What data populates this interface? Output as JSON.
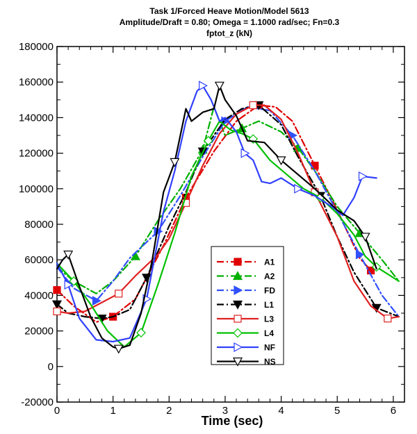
{
  "chart_data": {
    "type": "line",
    "title_lines": [
      "Task 1/Forced Heave Motion/Model 5613",
      "Amplitude/Draft =  0.80; Omega =  1.1000 rad/sec; Fn=0.3",
      "fptot_z (kN)"
    ],
    "xlabel": "Time (sec)",
    "ylabel": "",
    "xlim": [
      0,
      6.2
    ],
    "ylim": [
      -20000,
      180000
    ],
    "x_ticks": [
      0,
      1,
      2,
      3,
      4,
      5,
      6
    ],
    "x_tick_labels": [
      "0",
      "1",
      "2",
      "3",
      "4",
      "5",
      "6"
    ],
    "y_ticks": [
      -20000,
      0,
      20000,
      40000,
      60000,
      80000,
      100000,
      120000,
      140000,
      160000,
      180000
    ],
    "y_tick_labels": [
      "-20000",
      "0",
      "20000",
      "40000",
      "60000",
      "80000",
      "100000",
      "120000",
      "140000",
      "160000",
      "180000"
    ],
    "legend_position": "lower-center",
    "grid": false,
    "series": [
      {
        "name": "A1",
        "color": "#e00000",
        "dash": "dashdot",
        "marker": "square-filled",
        "x": [
          0,
          0.3,
          0.7,
          1.0,
          1.4,
          1.9,
          2.3,
          2.8,
          3.2,
          3.6,
          3.9,
          4.2,
          4.6,
          5.0,
          5.4,
          5.6
        ],
        "y": [
          43000,
          34000,
          25000,
          28000,
          38000,
          68000,
          95000,
          121000,
          138000,
          147000,
          146000,
          138000,
          113000,
          88000,
          61000,
          54000
        ]
      },
      {
        "name": "A2",
        "color": "#00b000",
        "dash": "dashdot",
        "marker": "triangle-up-filled",
        "x": [
          0,
          0.3,
          0.7,
          1.0,
          1.4,
          1.8,
          2.2,
          2.6,
          2.8,
          3.0,
          3.3,
          3.6,
          4.0,
          4.3,
          4.6,
          5.0,
          5.4,
          5.8,
          6.1
        ],
        "y": [
          56000,
          48000,
          41000,
          48000,
          62000,
          82000,
          100000,
          122000,
          146000,
          130000,
          134000,
          138000,
          132000,
          123000,
          110000,
          90000,
          75000,
          60000,
          48000
        ]
      },
      {
        "name": "FD",
        "color": "#3050ff",
        "dash": "dashdot",
        "marker": "triangle-right-filled",
        "x": [
          0,
          0.3,
          0.7,
          1.0,
          1.3,
          1.8,
          2.2,
          2.6,
          3.0,
          3.4,
          3.8,
          4.2,
          4.6,
          5.0,
          5.4,
          5.8,
          6.1
        ],
        "y": [
          56000,
          44000,
          37000,
          48000,
          61000,
          76000,
          96000,
          118000,
          138000,
          146000,
          144000,
          130000,
          110000,
          87000,
          63000,
          40000,
          28000
        ]
      },
      {
        "name": "L1",
        "color": "#000000",
        "dash": "dashdot",
        "marker": "triangle-down-filled",
        "x": [
          0,
          0.2,
          0.5,
          0.8,
          1.0,
          1.3,
          1.6,
          2.0,
          2.3,
          2.6,
          3.0,
          3.3,
          3.6,
          4.0,
          4.3,
          4.7,
          5.0,
          5.3,
          5.7,
          6.1
        ],
        "y": [
          35000,
          30000,
          28000,
          27000,
          28000,
          32000,
          50000,
          79000,
          98000,
          121000,
          139000,
          145000,
          147000,
          136000,
          118000,
          96000,
          73000,
          53000,
          33000,
          28000
        ]
      },
      {
        "name": "L3",
        "color": "#e02020",
        "dash": "solid",
        "marker": "square-open",
        "x": [
          0,
          0.2,
          0.5,
          0.8,
          1.1,
          1.4,
          1.8,
          2.0,
          2.3,
          2.6,
          2.9,
          3.2,
          3.5,
          3.7,
          4.0,
          4.3,
          4.6,
          5.0,
          5.3,
          5.6,
          5.9,
          6.1
        ],
        "y": [
          31000,
          30000,
          31000,
          36000,
          41000,
          51000,
          63000,
          72000,
          92000,
          113000,
          131000,
          142000,
          147000,
          147000,
          139000,
          120000,
          98000,
          73000,
          48000,
          34000,
          27000,
          28000
        ]
      },
      {
        "name": "L4",
        "color": "#00c000",
        "dash": "solid",
        "marker": "diamond-open",
        "x": [
          0,
          0.3,
          0.6,
          0.9,
          1.2,
          1.5,
          1.8,
          2.1,
          2.4,
          2.7,
          2.9,
          3.1,
          3.3,
          3.5,
          3.8,
          4.1,
          4.4,
          4.7,
          5.0,
          5.3,
          5.5,
          5.7,
          5.9,
          6.1
        ],
        "y": [
          58000,
          48000,
          35000,
          20000,
          11000,
          19000,
          46000,
          75000,
          107000,
          127000,
          138000,
          133000,
          131000,
          128000,
          116000,
          108000,
          100000,
          95000,
          86000,
          74000,
          62000,
          56000,
          52000,
          48000
        ]
      },
      {
        "name": "NF",
        "color": "#3040ff",
        "dash": "solid",
        "marker": "triangle-right-open",
        "x": [
          0,
          0.2,
          0.4,
          0.7,
          1.0,
          1.3,
          1.6,
          1.9,
          2.1,
          2.3,
          2.5,
          2.6,
          2.75,
          2.9,
          3.0,
          3.2,
          3.35,
          3.5,
          3.65,
          3.8,
          4.0,
          4.3,
          4.6,
          4.9,
          5.1,
          5.3,
          5.45,
          5.7
        ],
        "y": [
          58000,
          46000,
          27000,
          15000,
          14000,
          16000,
          38000,
          87000,
          110000,
          138000,
          155000,
          158000,
          150000,
          138000,
          140000,
          132000,
          120000,
          116000,
          104000,
          103000,
          106000,
          100000,
          96000,
          90000,
          85000,
          95000,
          107000,
          106000
        ]
      },
      {
        "name": "NS",
        "color": "#000000",
        "dash": "solid",
        "marker": "triangle-down-open",
        "x": [
          0,
          0.1,
          0.2,
          0.4,
          0.6,
          0.8,
          1.0,
          1.1,
          1.3,
          1.5,
          1.7,
          1.9,
          2.1,
          2.3,
          2.4,
          2.6,
          2.8,
          2.9,
          3.0,
          3.2,
          3.4,
          3.7,
          4.0,
          4.3,
          4.6,
          5.0,
          5.3,
          5.5,
          5.7
        ],
        "y": [
          55000,
          60000,
          63000,
          45000,
          28000,
          16000,
          11000,
          10000,
          12000,
          30000,
          60000,
          98000,
          115000,
          145000,
          138000,
          143000,
          145000,
          158000,
          150000,
          141000,
          127000,
          126000,
          116000,
          108000,
          100000,
          88000,
          82000,
          73000,
          55000
        ]
      }
    ]
  }
}
